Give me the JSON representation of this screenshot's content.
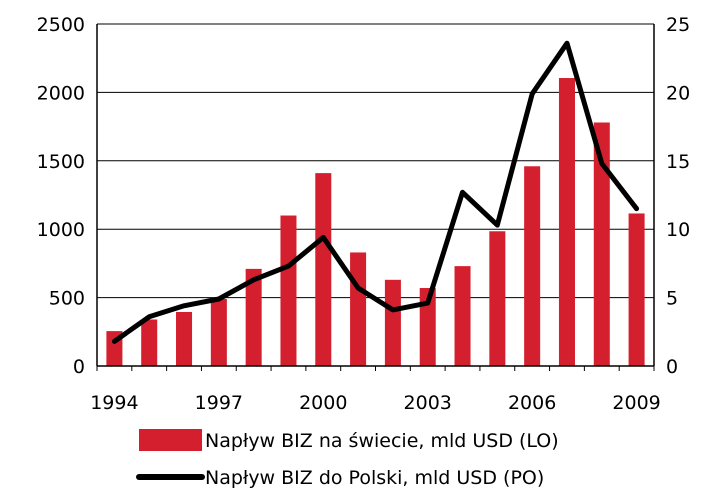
{
  "chart_data": {
    "type": "bar",
    "categories": [
      "1994",
      "1995",
      "1996",
      "1997",
      "1998",
      "1999",
      "2000",
      "2001",
      "2002",
      "2003",
      "2004",
      "2005",
      "2006",
      "2007",
      "2008",
      "2009"
    ],
    "x_tick_labels": [
      "1994",
      "1997",
      "2000",
      "2003",
      "2006",
      "2009"
    ],
    "series": [
      {
        "name": "Napływ BIZ na świecie, mld USD (LO)",
        "type": "bar",
        "axis": "left",
        "color": "#d4202e",
        "values": [
          255,
          340,
          395,
          490,
          710,
          1100,
          1410,
          830,
          630,
          570,
          730,
          985,
          1460,
          2105,
          1780,
          1115
        ]
      },
      {
        "name": "Napływ BIZ do Polski, mld USD (PO)",
        "type": "line",
        "axis": "right",
        "color": "#000000",
        "values": [
          1.8,
          3.6,
          4.4,
          4.9,
          6.3,
          7.3,
          9.4,
          5.7,
          4.1,
          4.6,
          12.7,
          10.3,
          19.9,
          23.6,
          14.8,
          11.5
        ]
      }
    ],
    "y_left": {
      "ylim": [
        0,
        2500
      ],
      "ticks": [
        "0",
        "500",
        "1000",
        "1500",
        "2000",
        "2500"
      ]
    },
    "y_right": {
      "ylim": [
        0,
        25
      ],
      "ticks": [
        "0",
        "5",
        "10",
        "15",
        "20",
        "25"
      ]
    },
    "grid": "horizontal",
    "legend_position": "bottom"
  }
}
